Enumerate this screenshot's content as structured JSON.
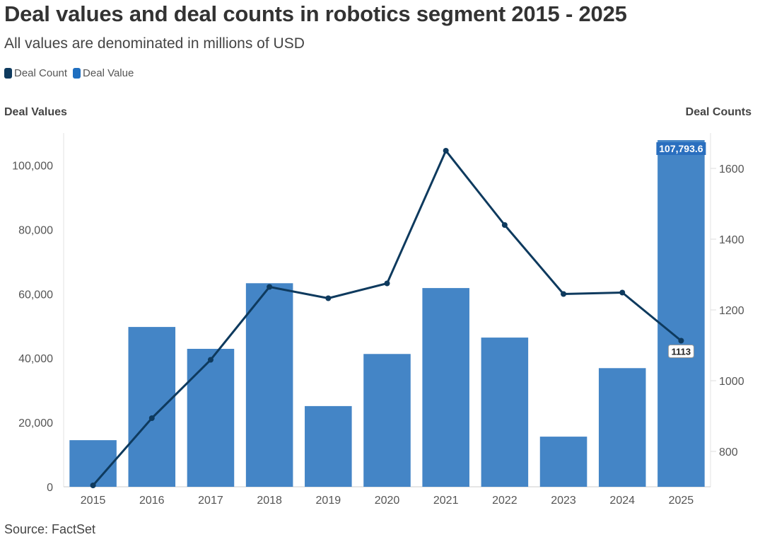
{
  "title": "Deal values and deal counts in robotics segment 2015 - 2025",
  "subtitle": "All values are denominated in millions of USD",
  "source": "Source: FactSet",
  "colors": {
    "deal_count": "#0e3a5e",
    "deal_value": "#4485c6",
    "legend_value": "#1f6fc0"
  },
  "chart_data": {
    "type": "bar+line",
    "categories": [
      "2015",
      "2016",
      "2017",
      "2018",
      "2019",
      "2020",
      "2021",
      "2022",
      "2023",
      "2024",
      "2025"
    ],
    "series": [
      {
        "name": "Deal Value",
        "type": "bar",
        "axis": "left",
        "values": [
          14500,
          49700,
          42900,
          63300,
          25100,
          41300,
          61800,
          46400,
          15600,
          36900,
          107793.6
        ]
      },
      {
        "name": "Deal Count",
        "type": "line",
        "axis": "right",
        "values": [
          704,
          894,
          1059,
          1265,
          1233,
          1275,
          1650,
          1440,
          1245,
          1249,
          1113
        ]
      }
    ],
    "left_axis": {
      "label": "Deal Values",
      "ylim": [
        0,
        110000
      ],
      "ticks": [
        0,
        20000,
        40000,
        60000,
        80000,
        100000
      ],
      "tick_labels": [
        "0",
        "20,000",
        "40,000",
        "60,000",
        "80,000",
        "100,000"
      ]
    },
    "right_axis": {
      "label": "Deal Counts",
      "ylim": [
        700,
        1700
      ],
      "ticks": [
        800,
        1000,
        1200,
        1400,
        1600
      ],
      "tick_labels": [
        "800",
        "1000",
        "1200",
        "1400",
        "1600"
      ]
    },
    "data_labels": {
      "bar_2025": "107,793.6",
      "line_2025": "1113"
    },
    "legend": [
      "Deal Count",
      "Deal Value"
    ],
    "legend_position": "top-left",
    "grid": false
  }
}
